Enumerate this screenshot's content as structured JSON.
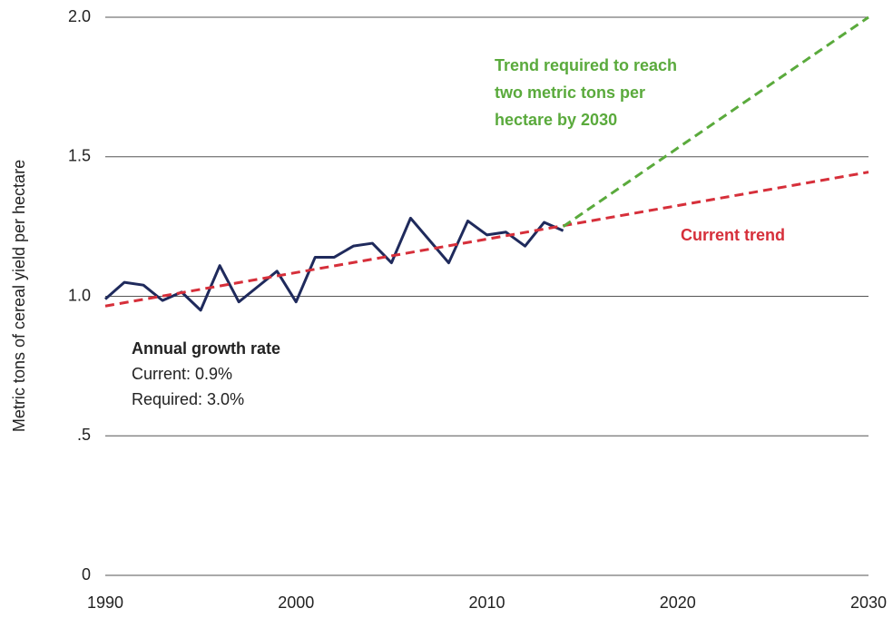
{
  "chart_data": {
    "type": "line",
    "y_label": "Metric tons of cereal yield per hectare",
    "xlim": [
      1990,
      2030
    ],
    "xticks": [
      1990,
      2000,
      2010,
      2020,
      2030
    ],
    "ylim": [
      0,
      2
    ],
    "yticks": [
      0,
      {
        "value": 0.5,
        "label": ".5"
      },
      {
        "value": 1,
        "label": "1.0"
      },
      1.5,
      {
        "value": 2,
        "label": "2.0"
      }
    ],
    "grid": true,
    "series": [
      {
        "color": "#1f2a5c",
        "dash": false,
        "x": [
          1990,
          1991,
          1992,
          1993,
          1994,
          1995,
          1996,
          1997,
          1998,
          1999,
          2000,
          2001,
          2002,
          2003,
          2004,
          2005,
          2006,
          2007,
          2008,
          2009,
          2010,
          2011,
          2012,
          2013,
          2014
        ],
        "values": [
          0.99,
          1.05,
          1.04,
          0.985,
          1.015,
          0.95,
          1.11,
          0.98,
          1.035,
          1.09,
          0.98,
          1.14,
          1.14,
          1.18,
          1.19,
          1.12,
          1.28,
          1.2,
          1.12,
          1.27,
          1.22,
          1.23,
          1.18,
          1.265,
          1.235
        ]
      },
      {
        "color": "#d62f3a",
        "dash": true,
        "x": [
          1990,
          2030
        ],
        "values": [
          0.965,
          1.445
        ]
      },
      {
        "color": "#5aaa3c",
        "dash": true,
        "x": [
          2014,
          2030
        ],
        "values": [
          1.25,
          2.0
        ]
      }
    ],
    "annotations": [
      {
        "lines": [
          "Trend required to reach",
          "two metric tons per",
          "hectare by 2030"
        ],
        "color": "#5aaa3c"
      },
      {
        "lines": [
          "Current trend"
        ],
        "color": "#d62f3a"
      },
      {
        "lines": [
          "Annual growth rate",
          "Current: 0.9%",
          "Required: 3.0%"
        ],
        "color": "#222"
      }
    ]
  }
}
